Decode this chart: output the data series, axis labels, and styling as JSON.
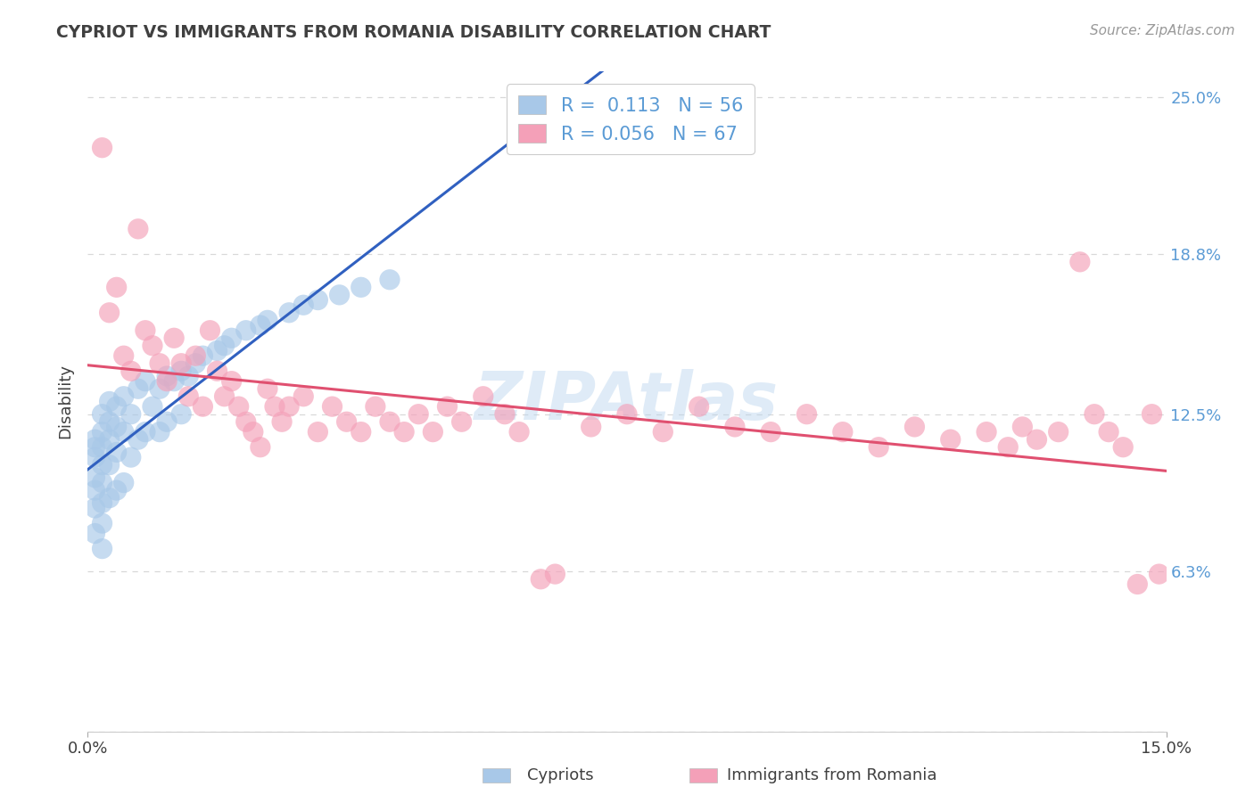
{
  "title": "CYPRIOT VS IMMIGRANTS FROM ROMANIA DISABILITY CORRELATION CHART",
  "source": "Source: ZipAtlas.com",
  "ylabel": "Disability",
  "xlim": [
    0.0,
    0.15
  ],
  "ylim": [
    0.0,
    0.26
  ],
  "yticks": [
    0.0,
    0.063,
    0.125,
    0.188,
    0.25
  ],
  "ytick_labels": [
    "",
    "6.3%",
    "12.5%",
    "18.8%",
    "25.0%"
  ],
  "xticks": [
    0.0,
    0.15
  ],
  "xtick_labels": [
    "0.0%",
    "15.0%"
  ],
  "watermark": "ZIPAtlas",
  "R_cypriot": 0.113,
  "N_cypriot": 56,
  "R_romania": 0.056,
  "N_romania": 67,
  "color_cypriot": "#a8c8e8",
  "color_romania": "#f4a0b8",
  "color_line_cypriot": "#3060c0",
  "color_line_romania": "#e05070",
  "title_color": "#404040",
  "source_color": "#999999",
  "raxis_color": "#5b9bd5",
  "text_color": "#404040",
  "grid_color": "#d8d8d8",
  "legend_edge_color": "#cccccc",
  "cypriot_x": [
    0.001,
    0.001,
    0.001,
    0.001,
    0.001,
    0.001,
    0.001,
    0.002,
    0.002,
    0.002,
    0.002,
    0.002,
    0.002,
    0.002,
    0.002,
    0.003,
    0.003,
    0.003,
    0.003,
    0.003,
    0.004,
    0.004,
    0.004,
    0.004,
    0.005,
    0.005,
    0.005,
    0.006,
    0.006,
    0.007,
    0.007,
    0.008,
    0.008,
    0.009,
    0.01,
    0.01,
    0.011,
    0.011,
    0.012,
    0.013,
    0.013,
    0.014,
    0.015,
    0.016,
    0.018,
    0.019,
    0.02,
    0.022,
    0.024,
    0.025,
    0.028,
    0.03,
    0.032,
    0.035,
    0.038,
    0.042
  ],
  "cypriot_y": [
    0.115,
    0.112,
    0.108,
    0.1,
    0.095,
    0.088,
    0.078,
    0.125,
    0.118,
    0.112,
    0.105,
    0.098,
    0.09,
    0.082,
    0.072,
    0.13,
    0.122,
    0.115,
    0.105,
    0.092,
    0.128,
    0.12,
    0.11,
    0.095,
    0.132,
    0.118,
    0.098,
    0.125,
    0.108,
    0.135,
    0.115,
    0.138,
    0.118,
    0.128,
    0.135,
    0.118,
    0.14,
    0.122,
    0.138,
    0.142,
    0.125,
    0.14,
    0.145,
    0.148,
    0.15,
    0.152,
    0.155,
    0.158,
    0.16,
    0.162,
    0.165,
    0.168,
    0.17,
    0.172,
    0.175,
    0.178
  ],
  "romania_x": [
    0.002,
    0.003,
    0.004,
    0.005,
    0.006,
    0.007,
    0.008,
    0.009,
    0.01,
    0.011,
    0.012,
    0.013,
    0.014,
    0.015,
    0.016,
    0.017,
    0.018,
    0.019,
    0.02,
    0.021,
    0.022,
    0.023,
    0.024,
    0.025,
    0.026,
    0.027,
    0.028,
    0.03,
    0.032,
    0.034,
    0.036,
    0.038,
    0.04,
    0.042,
    0.044,
    0.046,
    0.048,
    0.05,
    0.052,
    0.055,
    0.058,
    0.06,
    0.063,
    0.065,
    0.07,
    0.075,
    0.08,
    0.085,
    0.09,
    0.095,
    0.1,
    0.105,
    0.11,
    0.115,
    0.12,
    0.125,
    0.128,
    0.13,
    0.132,
    0.135,
    0.138,
    0.14,
    0.142,
    0.144,
    0.146,
    0.148,
    0.149
  ],
  "romania_y": [
    0.23,
    0.165,
    0.175,
    0.148,
    0.142,
    0.198,
    0.158,
    0.152,
    0.145,
    0.138,
    0.155,
    0.145,
    0.132,
    0.148,
    0.128,
    0.158,
    0.142,
    0.132,
    0.138,
    0.128,
    0.122,
    0.118,
    0.112,
    0.135,
    0.128,
    0.122,
    0.128,
    0.132,
    0.118,
    0.128,
    0.122,
    0.118,
    0.128,
    0.122,
    0.118,
    0.125,
    0.118,
    0.128,
    0.122,
    0.132,
    0.125,
    0.118,
    0.06,
    0.062,
    0.12,
    0.125,
    0.118,
    0.128,
    0.12,
    0.118,
    0.125,
    0.118,
    0.112,
    0.12,
    0.115,
    0.118,
    0.112,
    0.12,
    0.115,
    0.118,
    0.185,
    0.125,
    0.118,
    0.112,
    0.058,
    0.125,
    0.062
  ]
}
